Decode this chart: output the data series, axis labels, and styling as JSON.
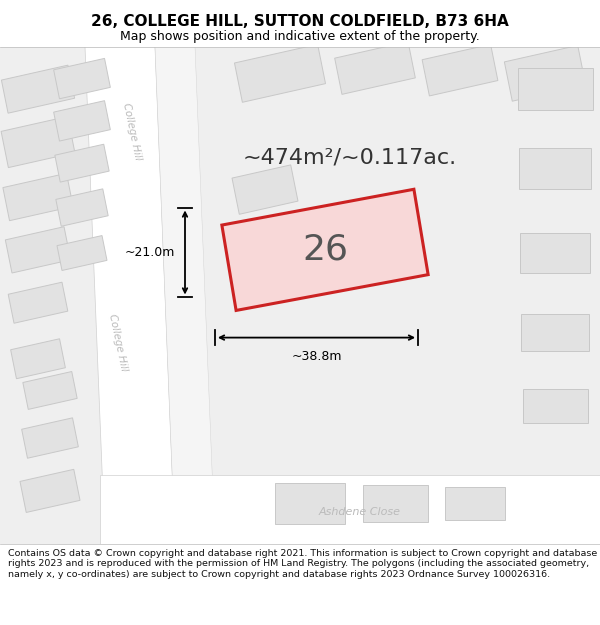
{
  "title": "26, COLLEGE HILL, SUTTON COLDFIELD, B73 6HA",
  "subtitle": "Map shows position and indicative extent of the property.",
  "footer": "Contains OS data © Crown copyright and database right 2021. This information is subject to Crown copyright and database rights 2023 and is reproduced with the permission of HM Land Registry. The polygons (including the associated geometry, namely x, y co-ordinates) are subject to Crown copyright and database rights 2023 Ordnance Survey 100026316.",
  "area_text": "~474m²/~0.117ac.",
  "property_number": "26",
  "width_label": "~38.8m",
  "height_label": "~21.0m",
  "map_bg": "#efefef",
  "road_color": "#ffffff",
  "road_edge": "#d0d0d0",
  "building_fill": "#e2e2e2",
  "building_stroke": "#c8c8c8",
  "highlight_stroke": "#cc2222",
  "highlight_fill": "#f8d8d8",
  "title_color": "#000000",
  "footer_color": "#111111",
  "annotation_color": "#000000",
  "road_label_color": "#bbbbbb",
  "title_fontsize": 11,
  "subtitle_fontsize": 9,
  "footer_fontsize": 6.8,
  "area_fontsize": 16,
  "number_fontsize": 26,
  "ann_fontsize": 9
}
